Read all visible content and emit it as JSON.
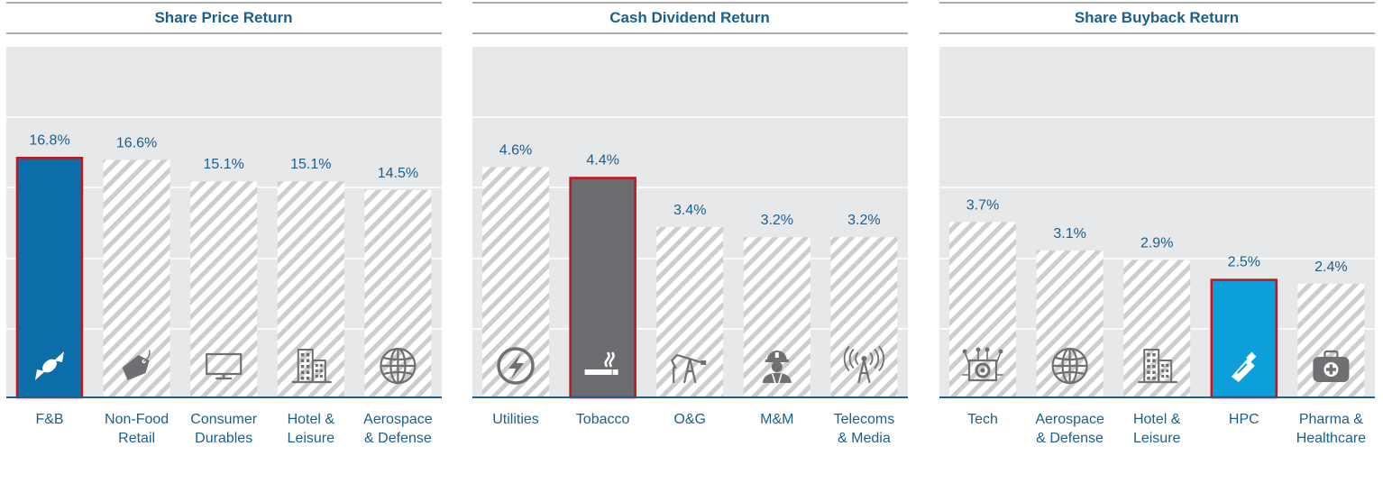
{
  "colors": {
    "title": "#1b5f8a",
    "panel_bg": "#e7e8ea",
    "gridline": "#ffffff",
    "axis": "#1b5f8a",
    "hatch_stroke": "#c9c9c9",
    "highlight_border": "#c0161c"
  },
  "chart_data": [
    {
      "type": "bar",
      "title": "Share Price Return",
      "categories": [
        "F&B",
        "Non-Food Retail",
        "Consumer Durables",
        "Hotel & Leisure",
        "Aerospace & Defense"
      ],
      "category_lines": [
        [
          "F&B"
        ],
        [
          "Non-Food",
          "Retail"
        ],
        [
          "Consumer",
          "Durables"
        ],
        [
          "Hotel &",
          "Leisure"
        ],
        [
          "Aerospace",
          "& Defense"
        ]
      ],
      "values": [
        16.8,
        16.6,
        15.1,
        15.1,
        14.5
      ],
      "value_labels": [
        "16.8%",
        "16.6%",
        "15.1%",
        "15.1%",
        "14.5%"
      ],
      "icons": [
        "candy-icon",
        "price-tag-icon",
        "monitor-icon",
        "building-icon",
        "globe-icon"
      ],
      "highlight_index": 0,
      "highlight_color": "#0b6ea9",
      "ylim": [
        0,
        24.5
      ],
      "grid": true,
      "legend": "none"
    },
    {
      "type": "bar",
      "title": "Cash Dividend Return",
      "categories": [
        "Utilities",
        "Tobacco",
        "O&G",
        "M&M",
        "Telecoms & Media"
      ],
      "category_lines": [
        [
          "Utilities"
        ],
        [
          "Tobacco"
        ],
        [
          "O&G"
        ],
        [
          "M&M"
        ],
        [
          "Telecoms",
          "& Media"
        ]
      ],
      "values": [
        4.6,
        4.4,
        3.4,
        3.2,
        3.2
      ],
      "value_labels": [
        "4.6%",
        "4.4%",
        "3.4%",
        "3.2%",
        "3.2%"
      ],
      "icons": [
        "lightning-icon",
        "cigarette-icon",
        "oil-pump-icon",
        "miner-icon",
        "radio-tower-icon"
      ],
      "highlight_index": 1,
      "highlight_color": "#6b6c6f",
      "ylim": [
        0,
        7.0
      ],
      "grid": true,
      "legend": "none"
    },
    {
      "type": "bar",
      "title": "Share Buyback Return",
      "categories": [
        "Tech",
        "Aerospace & Defense",
        "Hotel & Leisure",
        "HPC",
        "Pharma & Healthcare"
      ],
      "category_lines": [
        [
          "Tech"
        ],
        [
          "Aerospace",
          "& Defense"
        ],
        [
          "Hotel &",
          "Leisure"
        ],
        [
          "HPC"
        ],
        [
          "Pharma &",
          "Healthcare"
        ]
      ],
      "values": [
        3.7,
        3.1,
        2.9,
        2.5,
        2.4
      ],
      "value_labels": [
        "3.7%",
        "3.1%",
        "2.9%",
        "2.5%",
        "2.4%"
      ],
      "icons": [
        "circuit-gear-icon",
        "globe-icon",
        "building-icon",
        "cream-tube-icon",
        "first-aid-kit-icon"
      ],
      "highlight_index": 3,
      "highlight_color": "#0c9fd9",
      "ylim": [
        0,
        7.4
      ],
      "grid": true,
      "legend": "none"
    }
  ]
}
